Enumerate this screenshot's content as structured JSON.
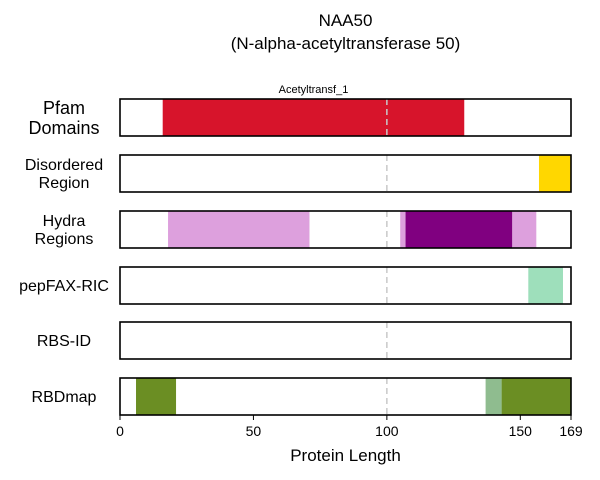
{
  "chart_data": {
    "type": "track",
    "title": "NAA50",
    "subtitle": "(N-alpha-acetyltransferase 50)",
    "xlabel": "Protein Length",
    "xlim": [
      0,
      169
    ],
    "xticks": [
      0,
      50,
      100,
      150,
      169
    ],
    "reference_line": 100,
    "tracks": [
      {
        "label": [
          "Pfam",
          "Domains"
        ],
        "segments": [
          {
            "start": 16,
            "end": 129,
            "color": "#d7142b",
            "label": "Acetyltransf_1"
          }
        ]
      },
      {
        "label": [
          "Disordered",
          "Region"
        ],
        "segments": [
          {
            "start": 157,
            "end": 169,
            "color": "#ffd700"
          }
        ]
      },
      {
        "label": [
          "Hydra",
          "Regions"
        ],
        "segments": [
          {
            "start": 18,
            "end": 71,
            "color": "#dda0dd"
          },
          {
            "start": 105,
            "end": 107,
            "color": "#dda0dd"
          },
          {
            "start": 107,
            "end": 147,
            "color": "#800080"
          },
          {
            "start": 147,
            "end": 156,
            "color": "#dda0dd"
          }
        ]
      },
      {
        "label": [
          "pepFAX-RIC"
        ],
        "segments": [
          {
            "start": 153,
            "end": 166,
            "color": "#9edfbb"
          }
        ]
      },
      {
        "label": [
          "RBS-ID"
        ],
        "segments": []
      },
      {
        "label": [
          "RBDmap"
        ],
        "segments": [
          {
            "start": 6,
            "end": 21,
            "color": "#6b8e23"
          },
          {
            "start": 137,
            "end": 143,
            "color": "#8fbc8f"
          },
          {
            "start": 143,
            "end": 169,
            "color": "#6b8e23"
          }
        ]
      }
    ]
  }
}
